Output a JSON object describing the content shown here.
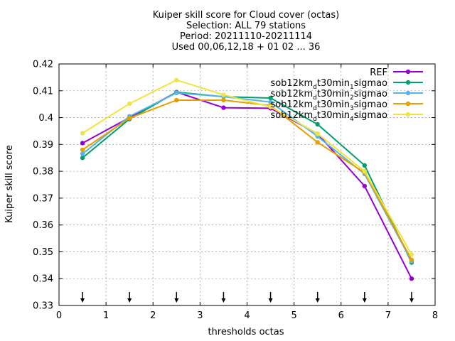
{
  "chart_data": {
    "type": "line",
    "title_lines": [
      "Kuiper skill score  for Cloud cover (octas)",
      "Selection: ALL     79 stations",
      "Period: 20211110-20211114",
      "Used 00,06,12,18 + 01 02 ... 36"
    ],
    "xlabel": "thresholds octas",
    "ylabel": "Kuiper skill score",
    "xlim": [
      0,
      8
    ],
    "ylim": [
      0.33,
      0.42
    ],
    "xticks": [
      0,
      1,
      2,
      3,
      4,
      5,
      6,
      7,
      8
    ],
    "xtick_labels": [
      "0",
      "1",
      "2",
      "3",
      "4",
      "5",
      "6",
      "7",
      "8"
    ],
    "yticks": [
      0.33,
      0.34,
      0.35,
      0.36,
      0.37,
      0.38,
      0.39,
      0.4,
      0.41,
      0.42
    ],
    "ytick_labels": [
      "0.33",
      "0.34",
      "0.35",
      "0.36",
      "0.37",
      "0.38",
      "0.39",
      "0.4",
      "0.41",
      "0.42"
    ],
    "grid": true,
    "legend_position": "top-right",
    "x": [
      0.5,
      1.5,
      2.5,
      3.5,
      4.5,
      5.5,
      6.5,
      7.5
    ],
    "arrow_markers_x": [
      0.5,
      1.5,
      2.5,
      3.5,
      4.5,
      5.5,
      6.5,
      7.5
    ],
    "series": [
      {
        "name": "REF",
        "legend_parts": [
          [
            "REF",
            false
          ]
        ],
        "color": "#9400d3",
        "values": [
          0.3905,
          0.4,
          0.4095,
          0.4037,
          0.4035,
          0.394,
          0.3745,
          0.34
        ]
      },
      {
        "name": "sob12km_dt30min_1sigmao",
        "legend_parts": [
          [
            "sob12km",
            false
          ],
          [
            "d",
            true
          ],
          [
            "t30min",
            false
          ],
          [
            "1",
            true
          ],
          [
            "sigmao",
            false
          ]
        ],
        "color": "#009e73",
        "values": [
          0.385,
          0.3995,
          0.4095,
          0.4078,
          0.4073,
          0.3975,
          0.3822,
          0.346
        ]
      },
      {
        "name": "sob12km_dt30min_2sigmao",
        "legend_parts": [
          [
            "sob12km",
            false
          ],
          [
            "d",
            true
          ],
          [
            "t30min",
            false
          ],
          [
            "2",
            true
          ],
          [
            "sigmao",
            false
          ]
        ],
        "color": "#56b4e9",
        "values": [
          0.3865,
          0.4005,
          0.4092,
          0.4078,
          0.4058,
          0.393,
          0.379,
          0.3465
        ]
      },
      {
        "name": "sob12km_dt30min_3sigmao",
        "legend_parts": [
          [
            "sob12km",
            false
          ],
          [
            "d",
            true
          ],
          [
            "t30min",
            false
          ],
          [
            "3",
            true
          ],
          [
            "sigmao",
            false
          ]
        ],
        "color": "#e69f00",
        "values": [
          0.388,
          0.3998,
          0.4065,
          0.4065,
          0.4045,
          0.3908,
          0.3795,
          0.347
        ]
      },
      {
        "name": "sob12km_dt30min_4sigmao",
        "legend_parts": [
          [
            "sob12km",
            false
          ],
          [
            "d",
            true
          ],
          [
            "t30min",
            false
          ],
          [
            "4",
            true
          ],
          [
            "sigmao",
            false
          ]
        ],
        "color": "#f0e442",
        "values": [
          0.3942,
          0.4052,
          0.414,
          0.4085,
          0.404,
          0.394,
          0.38,
          0.349
        ]
      }
    ]
  }
}
